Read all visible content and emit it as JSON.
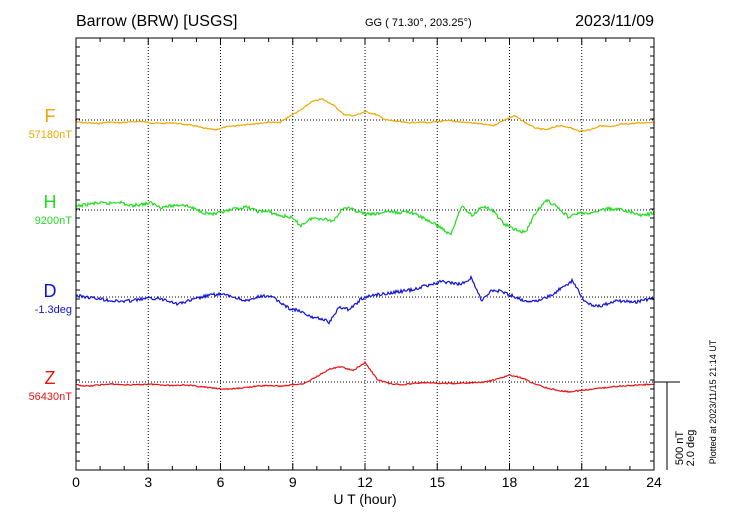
{
  "header": {
    "station": "Barrow (BRW)  [USGS]",
    "coords": "GG ( 71.30°, 203.25°)",
    "date": "2023/11/09",
    "plotted": "Plotted at 2023/11/15 21:14 UT"
  },
  "scale": {
    "nt": "500 nT",
    "deg": "2.0 deg"
  },
  "chart_data": {
    "type": "line",
    "xlabel": "U T (hour)",
    "xlim": [
      0,
      24
    ],
    "x_ticks": [
      "0",
      "3",
      "6",
      "9",
      "12",
      "15",
      "18",
      "21",
      "24"
    ],
    "grid": true,
    "series": [
      {
        "name": "F",
        "baseline": "57180nT",
        "color": "#f0a800",
        "values": [
          -3,
          -4,
          -5,
          -3,
          -4,
          -3,
          -2,
          -4,
          -5,
          -4,
          -6,
          -8,
          -12,
          -14,
          -10,
          -8,
          -6,
          -5,
          -3,
          -4,
          6,
          14,
          26,
          30,
          22,
          8,
          6,
          12,
          8,
          0,
          -2,
          -4,
          -3,
          -4,
          -2,
          -1,
          -3,
          -4,
          -6,
          -8,
          0,
          6,
          -4,
          -12,
          -14,
          -8,
          -10,
          -16,
          -14,
          -8,
          -10,
          -6,
          -5,
          -4,
          -3
        ],
        "range": [
          -60,
          60
        ]
      },
      {
        "name": "H",
        "baseline": "9200nT",
        "color": "#22dd22",
        "values": [
          5,
          8,
          10,
          9,
          12,
          6,
          8,
          10,
          4,
          6,
          8,
          2,
          -4,
          -6,
          -2,
          2,
          4,
          -2,
          -2,
          -8,
          -10,
          -22,
          -12,
          -12,
          -16,
          4,
          0,
          -6,
          -6,
          -2,
          -4,
          -2,
          -8,
          -16,
          -24,
          -36,
          6,
          -8,
          6,
          -2,
          -20,
          -28,
          -32,
          -2,
          14,
          4,
          -10,
          -4,
          -6,
          0,
          2,
          0,
          -4,
          -8,
          -4
        ],
        "range": [
          -60,
          60
        ]
      },
      {
        "name": "D",
        "baseline": "-1.3deg",
        "color": "#1111dd",
        "values": [
          2,
          0,
          -2,
          -4,
          -6,
          -6,
          -4,
          -2,
          -2,
          -4,
          -10,
          -6,
          -2,
          2,
          4,
          2,
          -2,
          -6,
          0,
          2,
          -6,
          -16,
          -20,
          -28,
          -30,
          -36,
          -14,
          -18,
          -4,
          2,
          4,
          6,
          8,
          10,
          14,
          18,
          22,
          20,
          18,
          28,
          -6,
          10,
          8,
          2,
          -4,
          -6,
          -4,
          4,
          14,
          24,
          -4,
          -12,
          -12,
          -6,
          -6,
          -8,
          -4,
          -2
        ],
        "range": [
          -60,
          60
        ]
      },
      {
        "name": "Z",
        "baseline": "56430nT",
        "color": "#ee1111",
        "values": [
          -4,
          -6,
          -4,
          -3,
          -4,
          -4,
          -3,
          -4,
          -5,
          -4,
          -6,
          -8,
          -10,
          -10,
          -8,
          -6,
          -5,
          -6,
          -4,
          -2,
          8,
          18,
          22,
          16,
          28,
          4,
          -2,
          -4,
          -2,
          -1,
          -2,
          -2,
          -2,
          -1,
          0,
          4,
          10,
          6,
          -2,
          -8,
          -12,
          -14,
          -12,
          -10,
          -8,
          -6,
          -5,
          -4,
          -3
        ],
        "range": [
          -60,
          60
        ]
      }
    ]
  }
}
